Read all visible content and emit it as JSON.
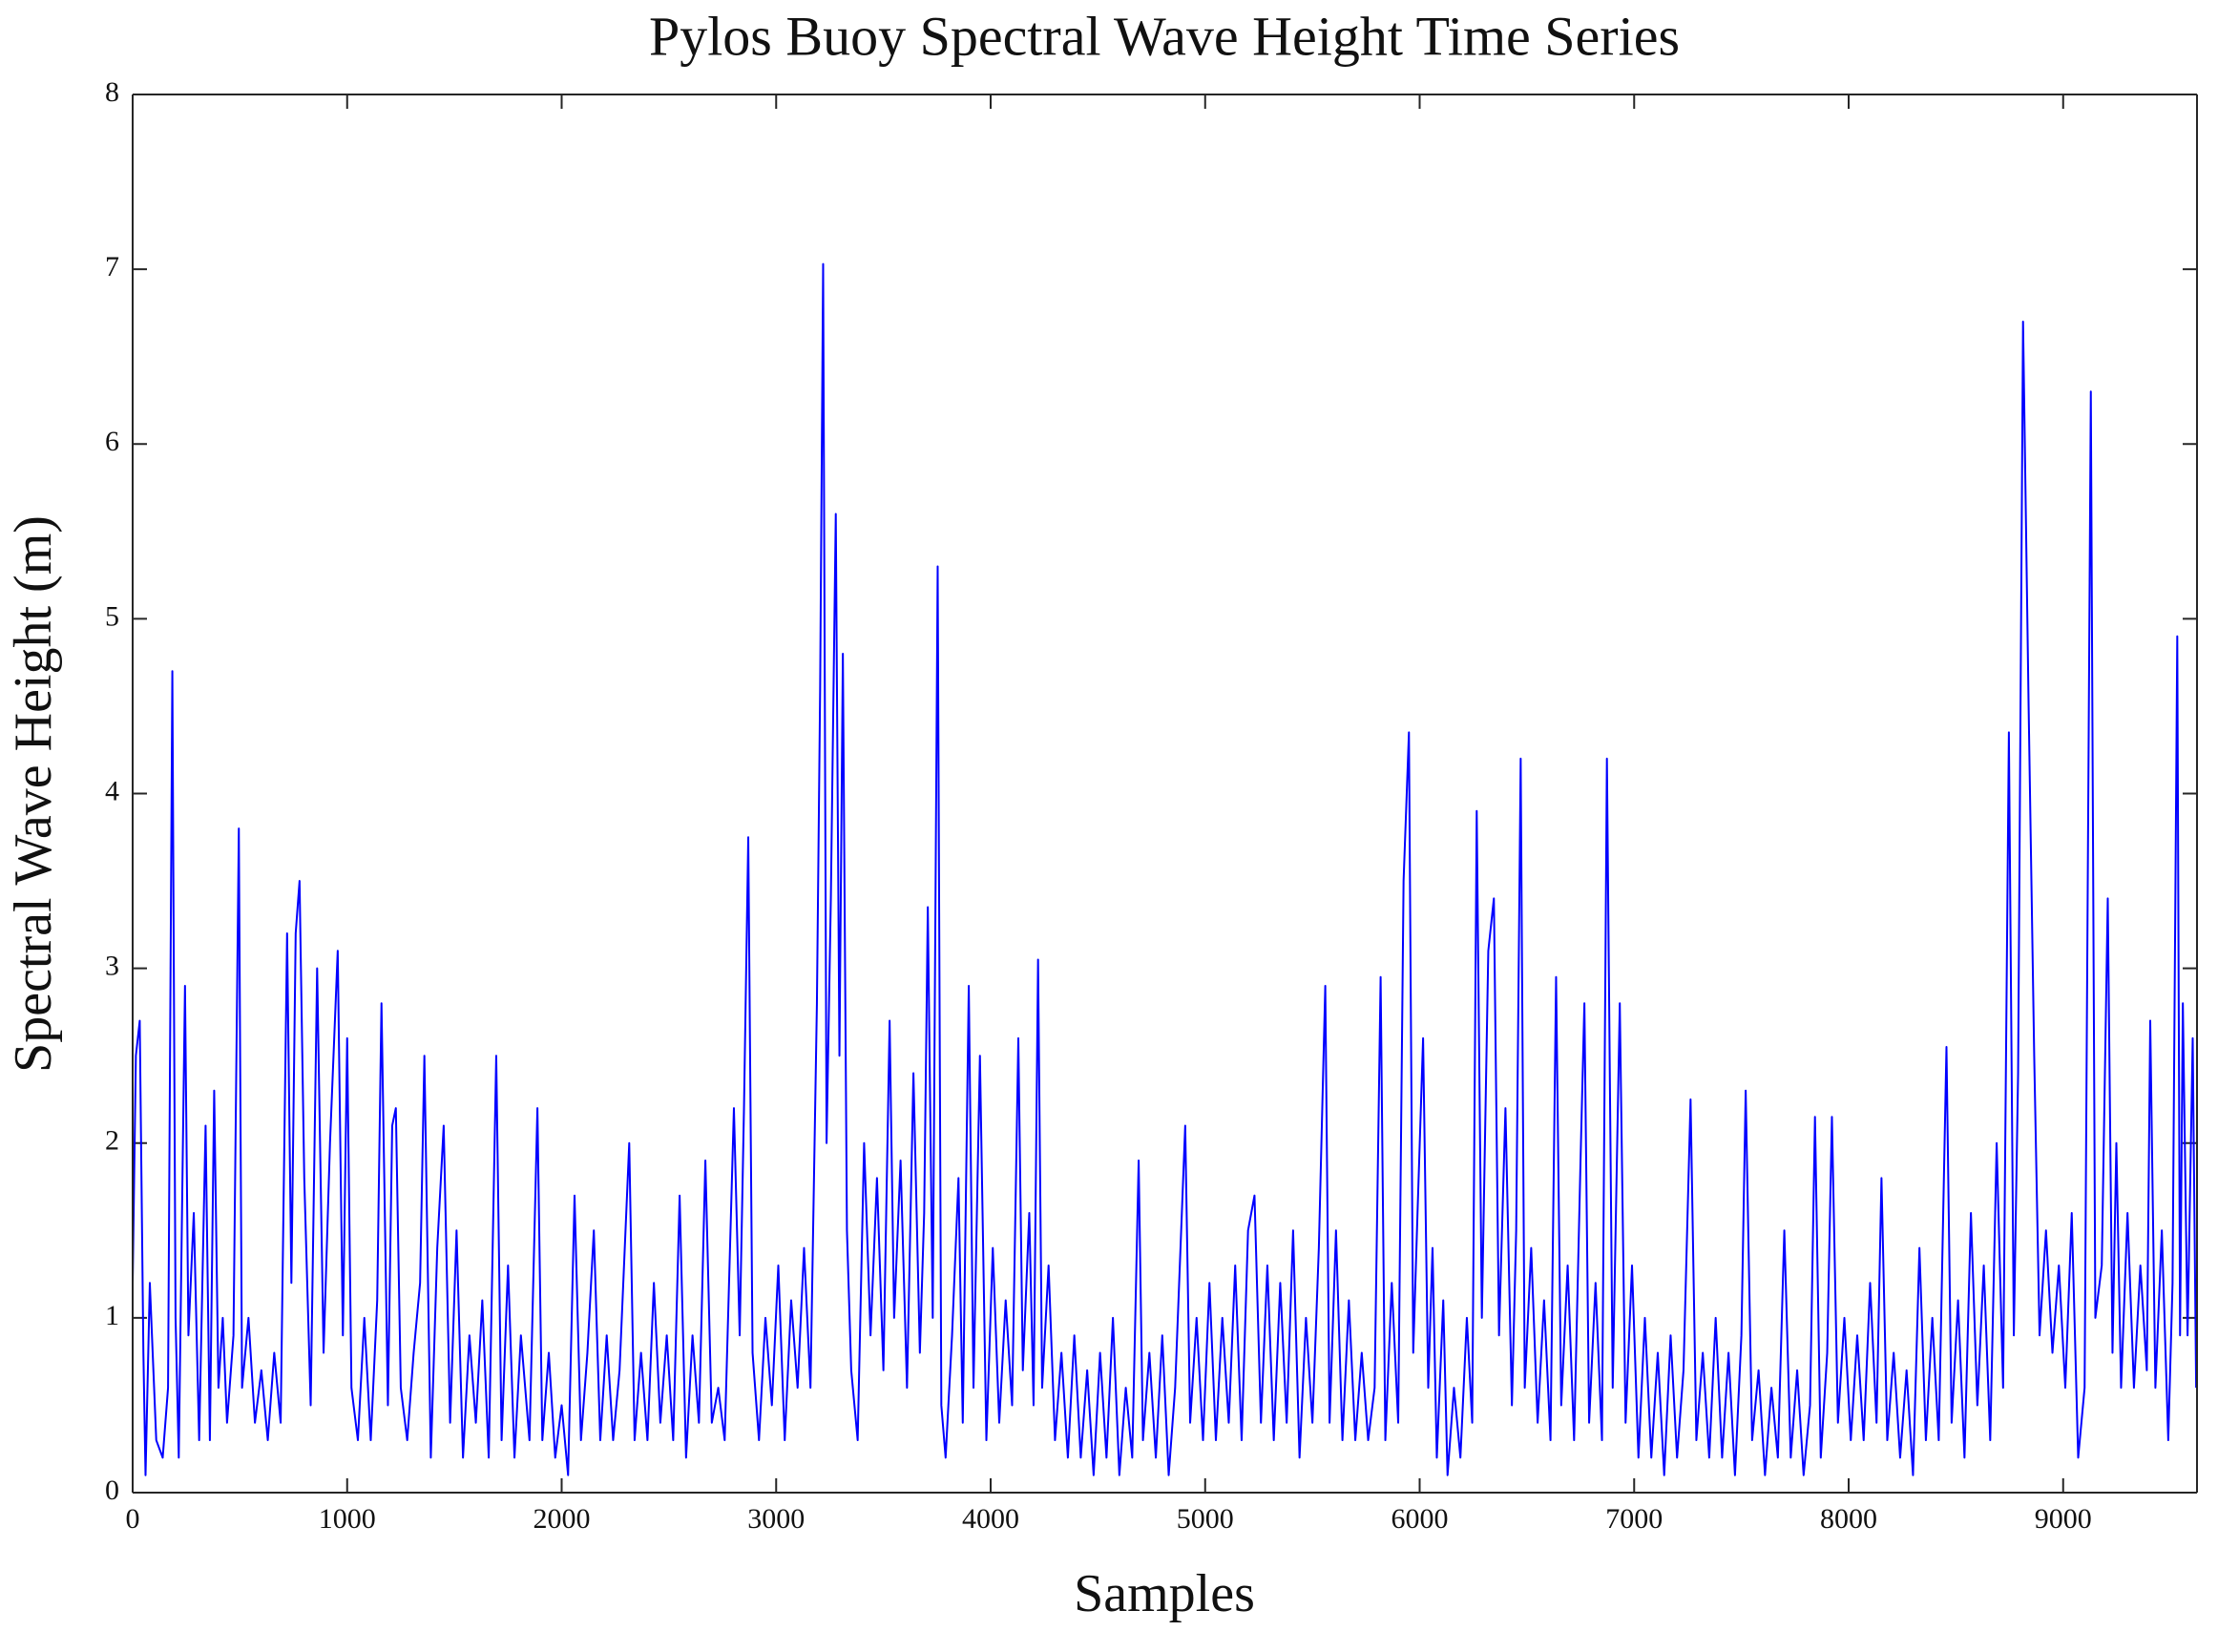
{
  "chart_data": {
    "type": "line",
    "title": "Pylos Buoy Spectral Wave Height Time Series",
    "x_label": "Samples",
    "y_label": "Spectral Wave Height (m)",
    "color": "#0000ff",
    "xlim": [
      0,
      9624
    ],
    "ylim": [
      0,
      8
    ],
    "xticks": [
      0,
      1000,
      2000,
      3000,
      4000,
      5000,
      6000,
      7000,
      8000,
      9000
    ],
    "yticks": [
      0,
      1,
      2,
      3,
      4,
      5,
      6,
      7,
      8
    ],
    "grid": false,
    "x": [
      0,
      15,
      33,
      50,
      60,
      80,
      110,
      140,
      165,
      185,
      200,
      215,
      244,
      260,
      285,
      310,
      340,
      360,
      380,
      400,
      420,
      440,
      470,
      495,
      510,
      540,
      570,
      600,
      630,
      660,
      690,
      720,
      740,
      760,
      778,
      800,
      830,
      860,
      890,
      920,
      956,
      980,
      1000,
      1020,
      1050,
      1080,
      1110,
      1140,
      1160,
      1190,
      1210,
      1227,
      1250,
      1280,
      1310,
      1340,
      1360,
      1390,
      1420,
      1450,
      1480,
      1510,
      1540,
      1570,
      1600,
      1630,
      1660,
      1695,
      1720,
      1750,
      1780,
      1810,
      1850,
      1887,
      1910,
      1940,
      1970,
      2000,
      2030,
      2060,
      2090,
      2120,
      2150,
      2180,
      2210,
      2240,
      2270,
      2315,
      2340,
      2370,
      2400,
      2430,
      2460,
      2490,
      2520,
      2550,
      2580,
      2610,
      2640,
      2670,
      2700,
      2730,
      2760,
      2803,
      2830,
      2850,
      2870,
      2890,
      2920,
      2950,
      2980,
      3010,
      3040,
      3070,
      3100,
      3130,
      3160,
      3190,
      3205,
      3219,
      3235,
      3255,
      3278,
      3295,
      3311,
      3330,
      3350,
      3380,
      3410,
      3440,
      3470,
      3500,
      3529,
      3550,
      3580,
      3610,
      3640,
      3670,
      3690,
      3707,
      3730,
      3753,
      3770,
      3790,
      3820,
      3850,
      3870,
      3898,
      3920,
      3950,
      3980,
      4010,
      4040,
      4070,
      4100,
      4129,
      4150,
      4180,
      4200,
      4221,
      4240,
      4270,
      4300,
      4330,
      4360,
      4390,
      4420,
      4450,
      4480,
      4510,
      4540,
      4570,
      4600,
      4630,
      4660,
      4690,
      4710,
      4740,
      4770,
      4800,
      4830,
      4860,
      4907,
      4930,
      4960,
      4990,
      5020,
      5050,
      5080,
      5110,
      5140,
      5170,
      5200,
      5230,
      5260,
      5290,
      5320,
      5350,
      5380,
      5410,
      5440,
      5470,
      5500,
      5530,
      5560,
      5580,
      5610,
      5640,
      5670,
      5700,
      5730,
      5760,
      5790,
      5818,
      5840,
      5870,
      5900,
      5925,
      5950,
      5970,
      5990,
      6016,
      6040,
      6060,
      6080,
      6110,
      6130,
      6160,
      6190,
      6220,
      6245,
      6266,
      6290,
      6320,
      6346,
      6370,
      6400,
      6430,
      6450,
      6471,
      6490,
      6520,
      6550,
      6580,
      6610,
      6636,
      6660,
      6690,
      6720,
      6750,
      6768,
      6790,
      6820,
      6850,
      6873,
      6900,
      6933,
      6960,
      6990,
      7020,
      7050,
      7080,
      7110,
      7140,
      7170,
      7200,
      7230,
      7263,
      7290,
      7320,
      7350,
      7380,
      7410,
      7440,
      7470,
      7500,
      7520,
      7550,
      7580,
      7610,
      7640,
      7670,
      7700,
      7730,
      7760,
      7790,
      7820,
      7843,
      7870,
      7900,
      7922,
      7950,
      7980,
      8010,
      8040,
      8070,
      8100,
      8130,
      8153,
      8180,
      8210,
      8240,
      8270,
      8300,
      8330,
      8360,
      8390,
      8420,
      8456,
      8480,
      8510,
      8540,
      8570,
      8600,
      8630,
      8660,
      8690,
      8720,
      8747,
      8770,
      8790,
      8813,
      8839,
      8865,
      8890,
      8920,
      8950,
      8980,
      9010,
      9040,
      9070,
      9100,
      9129,
      9150,
      9180,
      9208,
      9230,
      9248,
      9270,
      9300,
      9330,
      9360,
      9390,
      9406,
      9430,
      9460,
      9490,
      9510,
      9532,
      9545,
      9558,
      9580,
      9604,
      9620
    ],
    "values": [
      1.2,
      2.5,
      2.7,
      0.8,
      0.1,
      1.2,
      0.3,
      0.2,
      0.6,
      4.7,
      1.0,
      0.2,
      2.9,
      0.9,
      1.6,
      0.3,
      2.1,
      0.3,
      2.3,
      0.6,
      1.0,
      0.4,
      0.9,
      3.8,
      0.6,
      1.0,
      0.4,
      0.7,
      0.3,
      0.8,
      0.4,
      3.2,
      1.2,
      3.2,
      3.5,
      1.8,
      0.5,
      3.0,
      0.8,
      2.0,
      3.1,
      0.9,
      2.6,
      0.6,
      0.3,
      1.0,
      0.3,
      1.1,
      2.8,
      0.5,
      2.1,
      2.2,
      0.6,
      0.3,
      0.8,
      1.2,
      2.5,
      0.2,
      1.4,
      2.1,
      0.4,
      1.5,
      0.2,
      0.9,
      0.4,
      1.1,
      0.2,
      2.5,
      0.3,
      1.3,
      0.2,
      0.9,
      0.3,
      2.2,
      0.3,
      0.8,
      0.2,
      0.5,
      0.1,
      1.7,
      0.3,
      0.8,
      1.5,
      0.3,
      0.9,
      0.3,
      0.7,
      2.0,
      0.3,
      0.8,
      0.3,
      1.2,
      0.4,
      0.9,
      0.3,
      1.7,
      0.2,
      0.9,
      0.4,
      1.9,
      0.4,
      0.6,
      0.3,
      2.2,
      0.9,
      2.2,
      3.75,
      0.8,
      0.3,
      1.0,
      0.5,
      1.3,
      0.3,
      1.1,
      0.6,
      1.4,
      0.6,
      2.8,
      4.6,
      7.03,
      2.0,
      3.4,
      5.6,
      2.5,
      4.8,
      1.5,
      0.7,
      0.3,
      2.0,
      0.9,
      1.8,
      0.7,
      2.7,
      1.0,
      1.9,
      0.6,
      2.4,
      0.8,
      1.6,
      3.35,
      1.0,
      5.3,
      0.5,
      0.2,
      0.9,
      1.8,
      0.4,
      2.9,
      0.6,
      2.5,
      0.3,
      1.4,
      0.4,
      1.1,
      0.5,
      2.6,
      0.7,
      1.6,
      0.5,
      3.05,
      0.6,
      1.3,
      0.3,
      0.8,
      0.2,
      0.9,
      0.2,
      0.7,
      0.1,
      0.8,
      0.2,
      1.0,
      0.1,
      0.6,
      0.2,
      1.9,
      0.3,
      0.8,
      0.2,
      0.9,
      0.1,
      0.6,
      2.1,
      0.4,
      1.0,
      0.3,
      1.2,
      0.3,
      1.0,
      0.4,
      1.3,
      0.3,
      1.5,
      1.7,
      0.4,
      1.3,
      0.3,
      1.2,
      0.4,
      1.5,
      0.2,
      1.0,
      0.4,
      1.4,
      2.9,
      0.4,
      1.5,
      0.3,
      1.1,
      0.3,
      0.8,
      0.3,
      0.6,
      2.95,
      0.3,
      1.2,
      0.4,
      3.5,
      4.35,
      0.8,
      1.6,
      2.6,
      0.6,
      1.4,
      0.2,
      1.1,
      0.1,
      0.6,
      0.2,
      1.0,
      0.4,
      3.9,
      1.0,
      3.1,
      3.4,
      0.9,
      2.2,
      0.5,
      1.5,
      4.2,
      0.6,
      1.4,
      0.4,
      1.1,
      0.3,
      2.95,
      0.5,
      1.3,
      0.3,
      1.9,
      2.8,
      0.4,
      1.2,
      0.3,
      4.2,
      0.6,
      2.8,
      0.4,
      1.3,
      0.2,
      1.0,
      0.2,
      0.8,
      0.1,
      0.9,
      0.2,
      0.7,
      2.25,
      0.3,
      0.8,
      0.2,
      1.0,
      0.2,
      0.8,
      0.1,
      0.9,
      2.3,
      0.3,
      0.7,
      0.1,
      0.6,
      0.2,
      1.5,
      0.2,
      0.7,
      0.1,
      0.5,
      2.15,
      0.2,
      0.8,
      2.15,
      0.4,
      1.0,
      0.3,
      0.9,
      0.3,
      1.2,
      0.4,
      1.8,
      0.3,
      0.8,
      0.2,
      0.7,
      0.1,
      1.4,
      0.3,
      1.0,
      0.3,
      2.55,
      0.4,
      1.1,
      0.2,
      1.6,
      0.5,
      1.3,
      0.3,
      2.0,
      0.6,
      4.35,
      0.9,
      2.4,
      6.7,
      4.5,
      2.5,
      0.9,
      1.5,
      0.8,
      1.3,
      0.6,
      1.6,
      0.2,
      0.6,
      6.3,
      1.0,
      1.3,
      3.4,
      0.8,
      2.0,
      0.6,
      1.6,
      0.6,
      1.3,
      0.7,
      2.7,
      0.6,
      1.5,
      0.3,
      1.2,
      4.9,
      0.9,
      2.8,
      0.9,
      2.6,
      0.6
    ]
  }
}
